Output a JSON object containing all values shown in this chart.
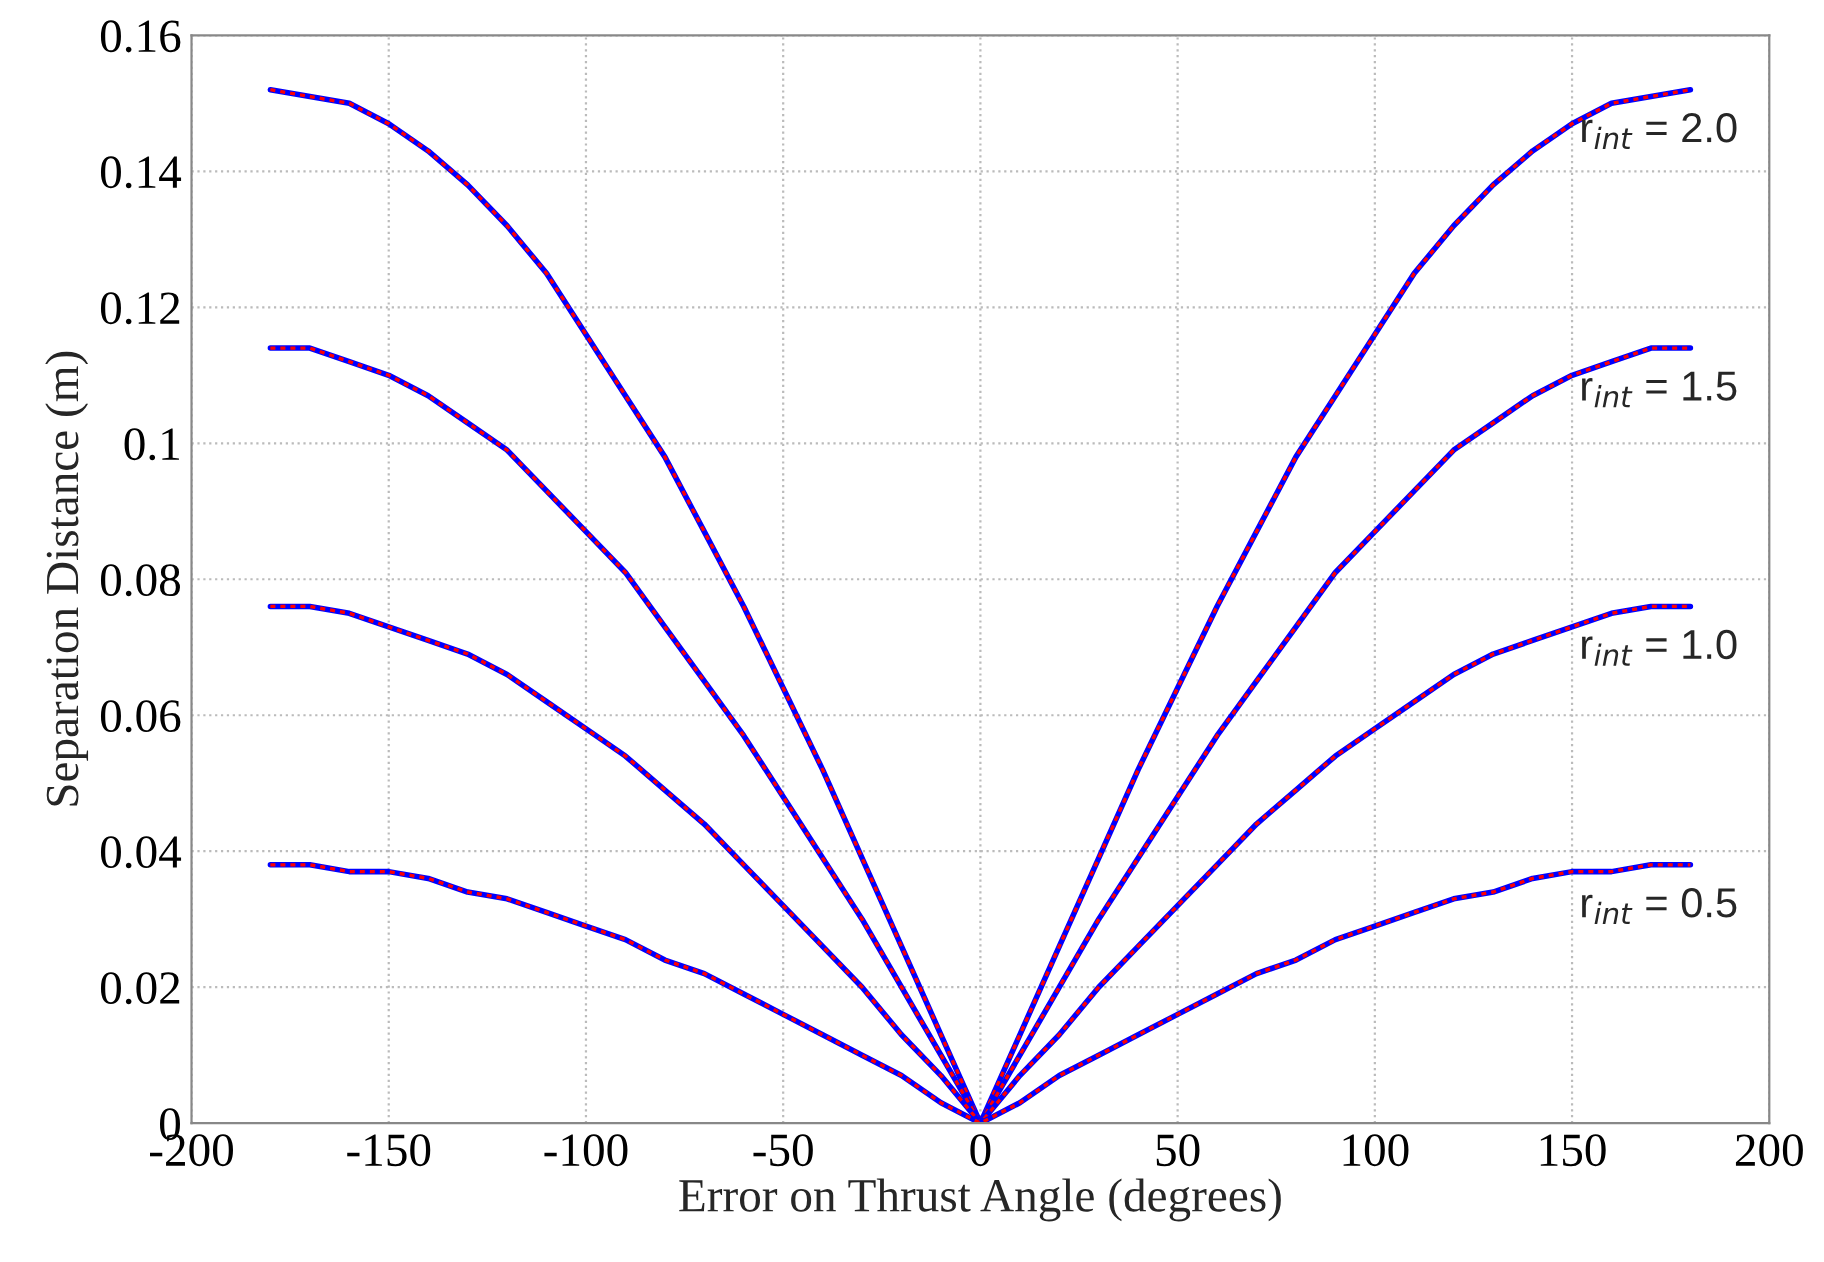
{
  "chart_data": {
    "type": "line",
    "xlabel": "Error on Thrust Angle (degrees)",
    "ylabel": "Separation Distance (m)",
    "x": [
      -180,
      -170,
      -160,
      -150,
      -140,
      -130,
      -120,
      -110,
      -100,
      -90,
      -80,
      -70,
      -60,
      -50,
      -40,
      -30,
      -20,
      -10,
      0,
      10,
      20,
      30,
      40,
      50,
      60,
      70,
      80,
      90,
      100,
      110,
      120,
      130,
      140,
      150,
      160,
      170,
      180
    ],
    "series": [
      {
        "color": "#0000ff",
        "line_style": "solid",
        "values": [
          0.152,
          0.151,
          0.15,
          0.147,
          0.143,
          0.138,
          0.132,
          0.125,
          0.116,
          0.107,
          0.098,
          0.087,
          0.076,
          0.064,
          0.052,
          0.039,
          0.026,
          0.013,
          0,
          0.013,
          0.026,
          0.039,
          0.052,
          0.064,
          0.076,
          0.087,
          0.098,
          0.107,
          0.116,
          0.125,
          0.132,
          0.138,
          0.143,
          0.147,
          0.15,
          0.151,
          0.152
        ]
      },
      {
        "color": "#ff0000",
        "line_style": "dashed",
        "values": [
          0.152,
          0.151,
          0.15,
          0.147,
          0.143,
          0.138,
          0.132,
          0.125,
          0.116,
          0.107,
          0.098,
          0.087,
          0.076,
          0.064,
          0.052,
          0.039,
          0.026,
          0.013,
          0,
          0.013,
          0.026,
          0.039,
          0.052,
          0.064,
          0.076,
          0.087,
          0.098,
          0.107,
          0.116,
          0.125,
          0.132,
          0.138,
          0.143,
          0.147,
          0.15,
          0.151,
          0.152
        ]
      },
      {
        "color": "#0000ff",
        "line_style": "solid",
        "values": [
          0.114,
          0.114,
          0.112,
          0.11,
          0.107,
          0.103,
          0.099,
          0.093,
          0.087,
          0.081,
          0.073,
          0.065,
          0.057,
          0.048,
          0.039,
          0.03,
          0.02,
          0.01,
          0,
          0.01,
          0.02,
          0.03,
          0.039,
          0.048,
          0.057,
          0.065,
          0.073,
          0.081,
          0.087,
          0.093,
          0.099,
          0.103,
          0.107,
          0.11,
          0.112,
          0.114,
          0.114
        ]
      },
      {
        "color": "#ff0000",
        "line_style": "dashed",
        "values": [
          0.114,
          0.114,
          0.112,
          0.11,
          0.107,
          0.103,
          0.099,
          0.093,
          0.087,
          0.081,
          0.073,
          0.065,
          0.057,
          0.048,
          0.039,
          0.03,
          0.02,
          0.01,
          0,
          0.01,
          0.02,
          0.03,
          0.039,
          0.048,
          0.057,
          0.065,
          0.073,
          0.081,
          0.087,
          0.093,
          0.099,
          0.103,
          0.107,
          0.11,
          0.112,
          0.114,
          0.114
        ]
      },
      {
        "color": "#0000ff",
        "line_style": "solid",
        "values": [
          0.076,
          0.076,
          0.075,
          0.073,
          0.071,
          0.069,
          0.066,
          0.062,
          0.058,
          0.054,
          0.049,
          0.044,
          0.038,
          0.032,
          0.026,
          0.02,
          0.013,
          0.007,
          0,
          0.007,
          0.013,
          0.02,
          0.026,
          0.032,
          0.038,
          0.044,
          0.049,
          0.054,
          0.058,
          0.062,
          0.066,
          0.069,
          0.071,
          0.073,
          0.075,
          0.076,
          0.076
        ]
      },
      {
        "color": "#ff0000",
        "line_style": "dashed",
        "values": [
          0.076,
          0.076,
          0.075,
          0.073,
          0.071,
          0.069,
          0.066,
          0.062,
          0.058,
          0.054,
          0.049,
          0.044,
          0.038,
          0.032,
          0.026,
          0.02,
          0.013,
          0.007,
          0,
          0.007,
          0.013,
          0.02,
          0.026,
          0.032,
          0.038,
          0.044,
          0.049,
          0.054,
          0.058,
          0.062,
          0.066,
          0.069,
          0.071,
          0.073,
          0.075,
          0.076,
          0.076
        ]
      },
      {
        "color": "#0000ff",
        "line_style": "solid",
        "values": [
          0.038,
          0.038,
          0.037,
          0.037,
          0.036,
          0.034,
          0.033,
          0.031,
          0.029,
          0.027,
          0.024,
          0.022,
          0.019,
          0.016,
          0.013,
          0.01,
          0.007,
          0.003,
          0,
          0.003,
          0.007,
          0.01,
          0.013,
          0.016,
          0.019,
          0.022,
          0.024,
          0.027,
          0.029,
          0.031,
          0.033,
          0.034,
          0.036,
          0.037,
          0.037,
          0.038,
          0.038
        ]
      },
      {
        "color": "#ff0000",
        "line_style": "dashed",
        "values": [
          0.038,
          0.038,
          0.037,
          0.037,
          0.036,
          0.034,
          0.033,
          0.031,
          0.029,
          0.027,
          0.024,
          0.022,
          0.019,
          0.016,
          0.013,
          0.01,
          0.007,
          0.003,
          0,
          0.003,
          0.007,
          0.01,
          0.013,
          0.016,
          0.019,
          0.022,
          0.024,
          0.027,
          0.029,
          0.031,
          0.033,
          0.034,
          0.036,
          0.037,
          0.037,
          0.038,
          0.038
        ]
      }
    ],
    "annotations": [
      "r$_{int}$ = 2.0",
      "r$_{int}$ = 1.5",
      "r$_{int}$ = 1.0",
      "r$_{int}$ = 0.5"
    ],
    "xlim": [
      -200,
      200
    ],
    "ylim": [
      0,
      0.16
    ],
    "xticks": [
      -200,
      -150,
      -100,
      -50,
      0,
      50,
      100,
      150,
      200
    ],
    "yticks": [
      0,
      0.02,
      0.04,
      0.06,
      0.08,
      0.1,
      0.12,
      0.14,
      0.16
    ],
    "grid": true,
    "legend": false
  }
}
